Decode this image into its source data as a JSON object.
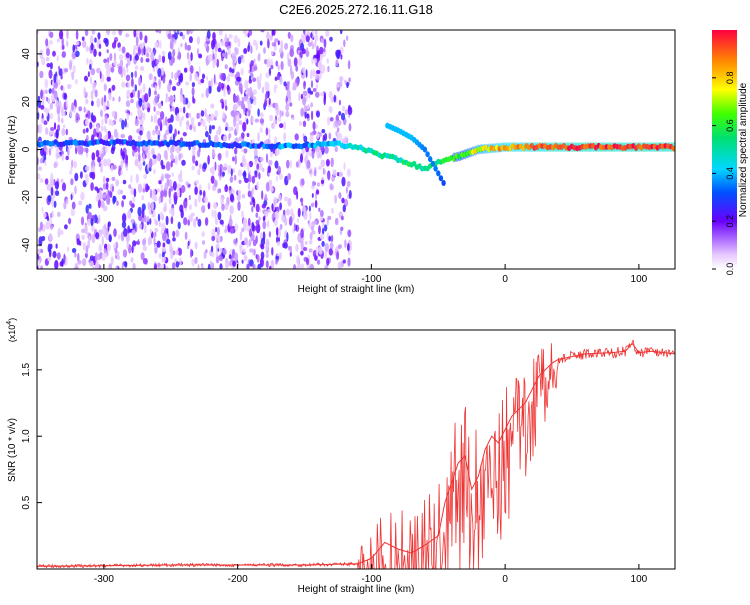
{
  "title": "C2E6.2025.272.16.11.G18",
  "chart_data": [
    {
      "type": "heatmap",
      "panel": "top",
      "xlabel": "Height of straight line (km)",
      "ylabel": "Frequency (Hz)",
      "xlim": [
        -350,
        127
      ],
      "ylim": [
        -50,
        50
      ],
      "xticks": [
        -300,
        -200,
        -100,
        0,
        100
      ],
      "yticks": [
        -40,
        -20,
        0,
        20,
        40
      ],
      "colorbar": {
        "label": "Normalized spectral amplitude",
        "range": [
          0,
          1
        ],
        "ticks": [
          0.0,
          0.2,
          0.4,
          0.6,
          0.8
        ],
        "tick_labels": [
          "0.0",
          "0.2",
          "0.4",
          "0.6",
          "0.8"
        ]
      },
      "main_track": {
        "x": [
          -345,
          -300,
          -250,
          -200,
          -160,
          -130,
          -110,
          -95,
          -80,
          -70,
          -60,
          -45,
          -35,
          -20,
          0,
          50,
          100,
          127
        ],
        "freq": [
          2.5,
          3,
          2.5,
          2,
          1.5,
          2.5,
          1,
          -2,
          -4,
          -6,
          -8,
          -4,
          -3,
          0,
          1,
          1,
          1,
          1
        ],
        "amplitude": [
          0.3,
          0.3,
          0.3,
          0.3,
          0.35,
          0.4,
          0.45,
          0.5,
          0.5,
          0.55,
          0.5,
          0.55,
          0.6,
          0.75,
          0.85,
          0.95,
          0.95,
          0.95
        ]
      },
      "secondary_track": {
        "x": [
          -88,
          -80,
          -70,
          -60,
          -52,
          -45
        ],
        "freq": [
          10,
          8,
          5,
          0,
          -8,
          -15
        ],
        "amplitude": [
          0.4,
          0.4,
          0.4,
          0.35,
          0.35,
          0.3
        ]
      },
      "noise_region": {
        "x_from": -350,
        "x_to": -115
      }
    },
    {
      "type": "line",
      "panel": "bottom",
      "xlabel": "Height of straight line (km)",
      "ylabel": "SNR (10 * v/v)",
      "y_scale_label": "(x10",
      "y_scale_exponent": "4",
      "y_scale_suffix": ")",
      "xlim": [
        -350,
        127
      ],
      "ylim": [
        0,
        1.8
      ],
      "xticks": [
        -300,
        -200,
        -100,
        0,
        100
      ],
      "yticks": [
        0.5,
        1.0,
        1.5
      ],
      "ytick_labels": [
        "0.5",
        "1.0",
        "1.5"
      ],
      "series": [
        {
          "name": "SNR",
          "color": "#ee3333",
          "x": [
            -350,
            -300,
            -250,
            -200,
            -150,
            -110,
            -100,
            -90,
            -80,
            -70,
            -60,
            -50,
            -45,
            -40,
            -35,
            -30,
            -25,
            -20,
            -15,
            -10,
            -5,
            0,
            5,
            10,
            15,
            20,
            25,
            30,
            35,
            40,
            50,
            60,
            80,
            90,
            95,
            100,
            110,
            127
          ],
          "y": [
            0.02,
            0.025,
            0.03,
            0.03,
            0.03,
            0.04,
            0.08,
            0.2,
            0.15,
            0.12,
            0.18,
            0.25,
            0.5,
            0.65,
            0.8,
            0.85,
            0.6,
            0.7,
            0.9,
            1.0,
            0.95,
            1.05,
            1.15,
            1.2,
            1.25,
            1.35,
            1.45,
            1.5,
            1.55,
            1.58,
            1.6,
            1.62,
            1.63,
            1.64,
            1.7,
            1.63,
            1.64,
            1.62
          ]
        }
      ]
    }
  ]
}
